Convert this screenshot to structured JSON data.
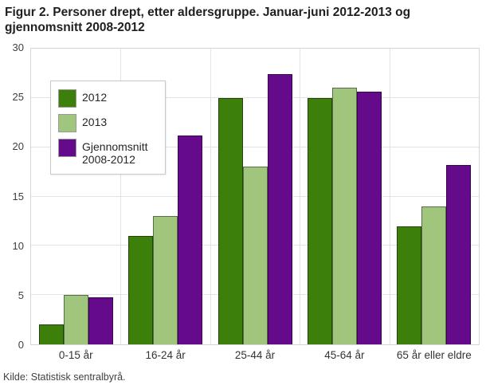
{
  "title": "Figur 2. Personer drept, etter aldersgruppe. Januar-juni 2012-2013 og gjennomsnitt 2008-2012",
  "source": "Kilde: Statistisk sentralbyrå.",
  "colors": {
    "series_2012": "#3c7f0a",
    "series_2013": "#a0c67e",
    "series_avg": "#660a8c",
    "gridline": "#e3e3e3",
    "plot_border": "#d6d6d6"
  },
  "chart_data": {
    "type": "bar",
    "title": "Figur 2. Personer drept, etter aldersgruppe. Januar-juni 2012-2013 og gjennomsnitt 2008-2012",
    "categories": [
      "0-15 år",
      "16-24 år",
      "25-44 år",
      "45-64 år",
      "65 år eller eldre"
    ],
    "series": [
      {
        "name": "2012",
        "color": "#3c7f0a",
        "values": [
          2,
          11,
          25,
          25,
          12
        ]
      },
      {
        "name": "2013",
        "color": "#a0c67e",
        "values": [
          5,
          13,
          18,
          26,
          14
        ]
      },
      {
        "name": "Gjennomsnitt 2008-2012",
        "color": "#660a8c",
        "values": [
          4.8,
          21.2,
          27.4,
          25.6,
          18.2
        ]
      }
    ],
    "xlabel": "",
    "ylabel": "",
    "ylim": [
      0,
      30
    ],
    "yticks": [
      0,
      5,
      10,
      15,
      20,
      25,
      30
    ],
    "grid": true,
    "legend_position": "top-left"
  }
}
